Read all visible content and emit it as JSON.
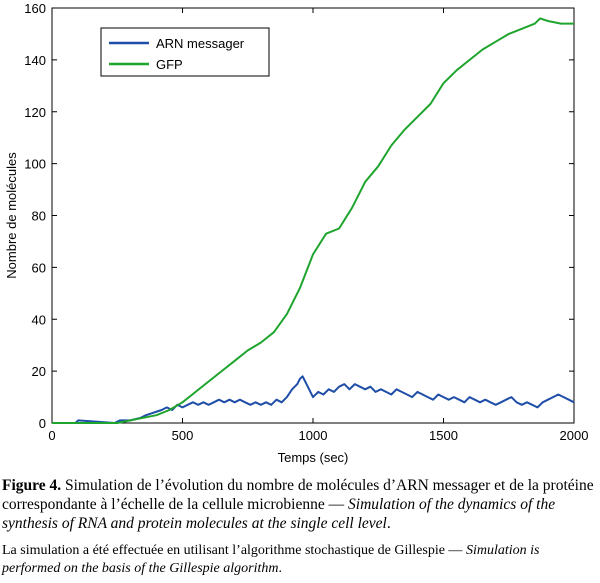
{
  "chart_data": {
    "type": "line",
    "xlabel": "Temps (sec)",
    "ylabel": "Nombre de molécules",
    "xlim": [
      0,
      2000
    ],
    "ylim": [
      0,
      160
    ],
    "xticks": [
      0,
      500,
      1000,
      1500,
      2000
    ],
    "yticks": [
      0,
      20,
      40,
      60,
      80,
      100,
      120,
      140,
      160
    ],
    "grid": false,
    "legend_position": "top-left",
    "series": [
      {
        "name": "ARN messager",
        "color": "#1f4ea8",
        "x": [
          0,
          90,
          100,
          240,
          260,
          300,
          340,
          360,
          420,
          440,
          460,
          480,
          500,
          520,
          540,
          560,
          580,
          600,
          620,
          640,
          660,
          680,
          700,
          720,
          740,
          760,
          780,
          800,
          820,
          840,
          860,
          880,
          900,
          920,
          940,
          950,
          960,
          970,
          980,
          990,
          1000,
          1020,
          1040,
          1060,
          1080,
          1100,
          1120,
          1140,
          1160,
          1180,
          1200,
          1220,
          1240,
          1260,
          1280,
          1300,
          1320,
          1340,
          1360,
          1380,
          1400,
          1420,
          1440,
          1460,
          1480,
          1500,
          1520,
          1540,
          1560,
          1580,
          1600,
          1620,
          1640,
          1660,
          1680,
          1700,
          1720,
          1740,
          1760,
          1780,
          1800,
          1820,
          1840,
          1860,
          1880,
          1900,
          1920,
          1940,
          1960,
          1980,
          2000
        ],
        "values": [
          0,
          0,
          1,
          0,
          1,
          1,
          2,
          3,
          5,
          6,
          5,
          7,
          6,
          7,
          8,
          7,
          8,
          7,
          8,
          9,
          8,
          9,
          8,
          9,
          8,
          7,
          8,
          7,
          8,
          7,
          9,
          8,
          10,
          13,
          15,
          17,
          18,
          16,
          14,
          12,
          10,
          12,
          11,
          13,
          12,
          14,
          15,
          13,
          15,
          14,
          13,
          14,
          12,
          13,
          12,
          11,
          13,
          12,
          11,
          10,
          12,
          11,
          10,
          9,
          11,
          10,
          9,
          10,
          9,
          8,
          10,
          9,
          8,
          9,
          8,
          7,
          8,
          9,
          10,
          8,
          7,
          8,
          7,
          6,
          8,
          9,
          10,
          11,
          10,
          9,
          8
        ]
      },
      {
        "name": "GFP",
        "color": "#1fa52e",
        "x": [
          0,
          250,
          300,
          350,
          400,
          450,
          500,
          550,
          600,
          650,
          700,
          750,
          800,
          850,
          900,
          950,
          1000,
          1050,
          1100,
          1150,
          1200,
          1250,
          1300,
          1350,
          1400,
          1450,
          1500,
          1550,
          1600,
          1650,
          1700,
          1750,
          1800,
          1850,
          1870,
          1900,
          1950,
          2000
        ],
        "values": [
          0,
          0,
          1,
          2,
          3,
          5,
          8,
          12,
          16,
          20,
          24,
          28,
          31,
          35,
          42,
          52,
          65,
          73,
          75,
          83,
          93,
          99,
          107,
          113,
          118,
          123,
          131,
          136,
          140,
          144,
          147,
          150,
          152,
          154,
          156,
          155,
          154,
          154
        ]
      }
    ]
  },
  "caption": {
    "fig_label": "Figure 4.",
    "fig_text": " Simulation de l’évolution du nombre de molécules d’ARN messager et de la protéine correspondante à l’échelle de la cellule microbienne — ",
    "fig_italic": "Simulation of the dynamics of the synthesis of RNA and protein molecules at the single cell level",
    "fig_end": ".",
    "note_text": "La simulation a été effectuée en utilisant l’algorithme stochastique de Gillespie — ",
    "note_italic": "Simulation is performed on the basis of the Gillespie algorithm",
    "note_end": "."
  }
}
